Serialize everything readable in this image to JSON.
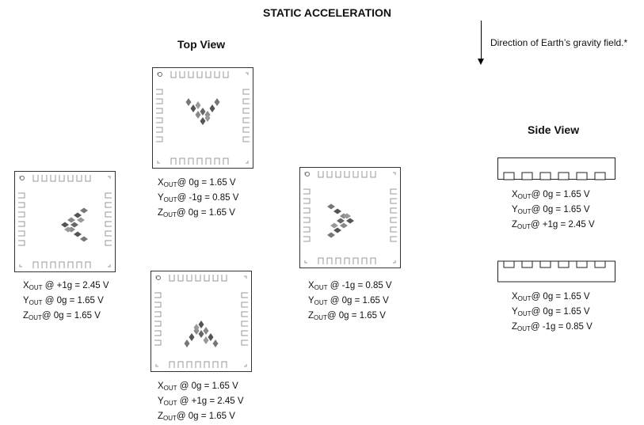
{
  "title": "STATIC ACCELERATION",
  "top_view_label": "Top View",
  "side_view_label": "Side View",
  "gravity_note": "Direction of Earth’s gravity field.*",
  "readouts": {
    "top": [
      {
        "axis": "X",
        "sub": "OUT",
        "text": "@ 0g = 1.65 V"
      },
      {
        "axis": "Y",
        "sub": "OUT",
        "text": "@ -1g = 0.85 V"
      },
      {
        "axis": "Z",
        "sub": "OUT",
        "text": "@ 0g = 1.65 V"
      }
    ],
    "left": [
      {
        "axis": "X",
        "sub": "OUT",
        "text": " @ +1g = 2.45 V"
      },
      {
        "axis": "Y",
        "sub": "OUT",
        "text": " @ 0g = 1.65 V"
      },
      {
        "axis": "Z",
        "sub": "OUT",
        "text": "@ 0g = 1.65 V"
      }
    ],
    "bottom": [
      {
        "axis": "X",
        "sub": "OUT",
        "text": " @ 0g = 1.65 V"
      },
      {
        "axis": "Y",
        "sub": "OUT",
        "text": " @ +1g = 2.45 V"
      },
      {
        "axis": "Z",
        "sub": "OUT",
        "text": "@ 0g = 1.65 V"
      }
    ],
    "right": [
      {
        "axis": "X",
        "sub": "OUT",
        "text": " @ -1g = 0.85 V"
      },
      {
        "axis": "Y",
        "sub": "OUT",
        "text": " @ 0g = 1.65 V"
      },
      {
        "axis": "Z",
        "sub": "OUT",
        "text": "@ 0g = 1.65 V"
      }
    ],
    "side_up": [
      {
        "axis": "X",
        "sub": "OUT",
        "text": "@ 0g = 1.65 V"
      },
      {
        "axis": "Y",
        "sub": "OUT",
        "text": "@ 0g = 1.65 V"
      },
      {
        "axis": "Z",
        "sub": "OUT",
        "text": "@ +1g = 2.45 V"
      }
    ],
    "side_down": [
      {
        "axis": "X",
        "sub": "OUT",
        "text": "@ 0g = 1.65 V"
      },
      {
        "axis": "Y",
        "sub": "OUT",
        "text": "@ 0g = 1.65 V"
      },
      {
        "axis": "Z",
        "sub": "OUT",
        "text": "@ -1g = 0.85 V"
      }
    ]
  }
}
